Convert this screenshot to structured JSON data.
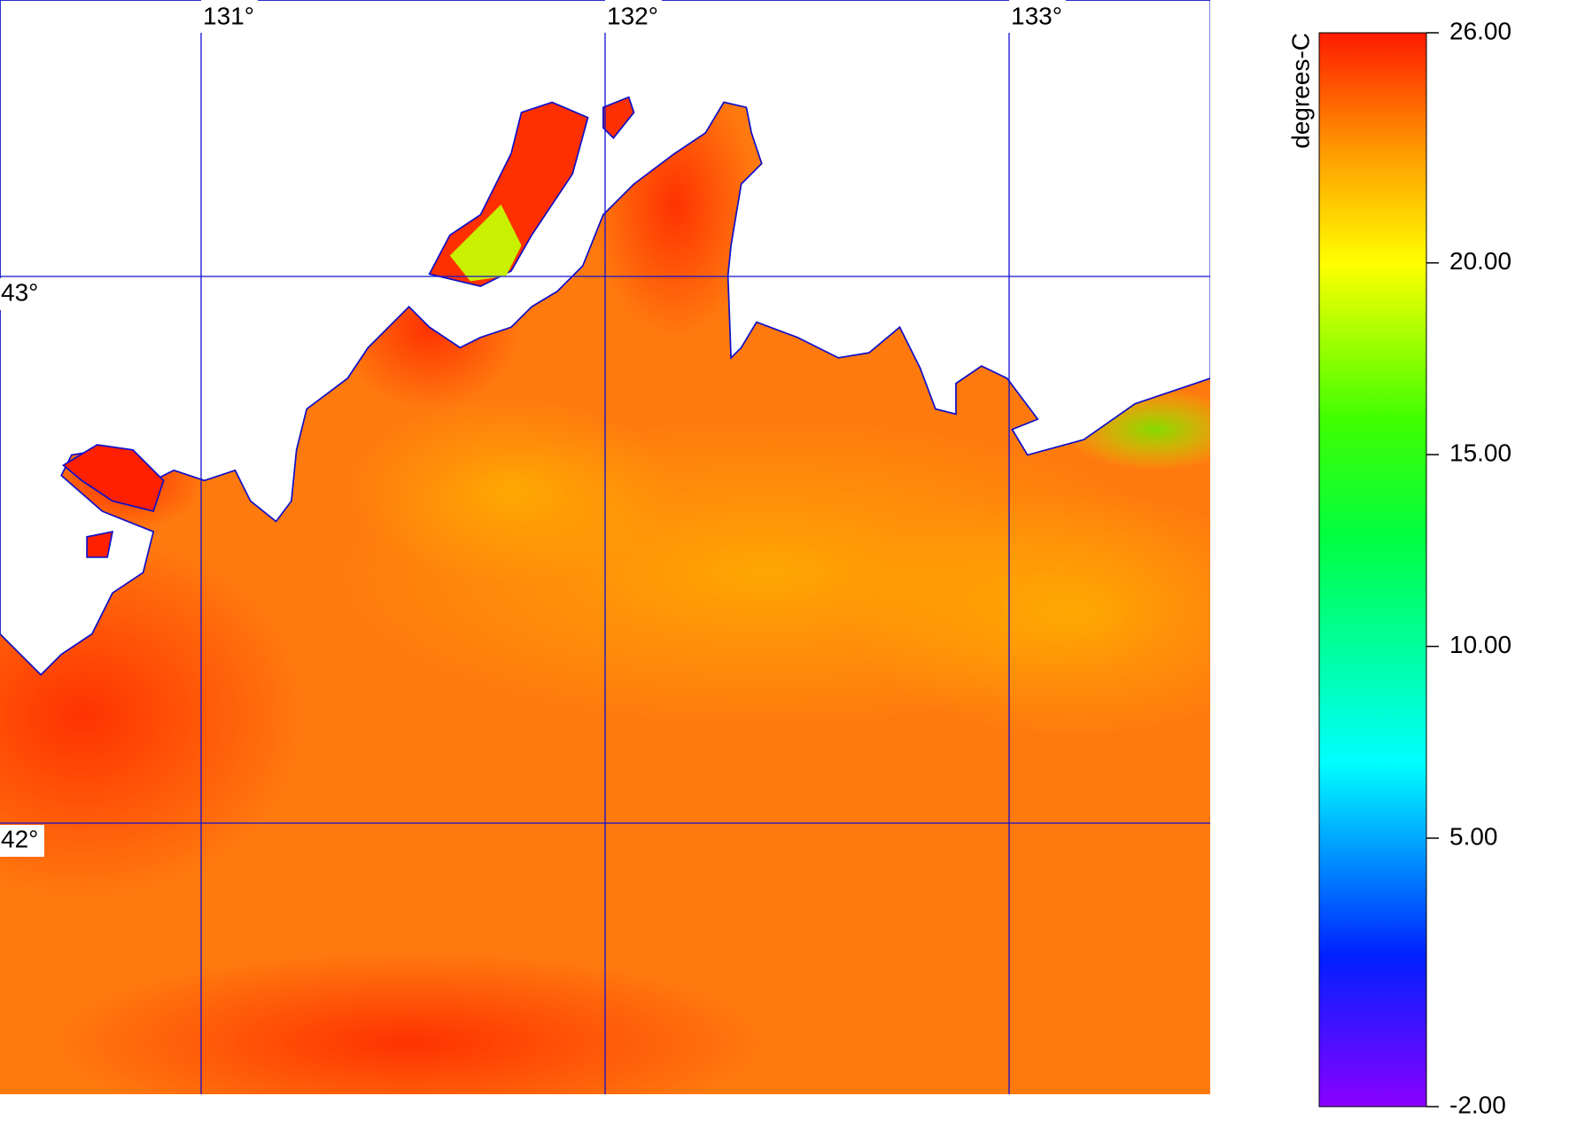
{
  "map": {
    "lon_ticks": [
      {
        "value": 131,
        "label": "131°"
      },
      {
        "value": 132,
        "label": "132°"
      },
      {
        "value": 133,
        "label": "133°"
      }
    ],
    "lat_ticks": [
      {
        "value": 43,
        "label": "43°"
      },
      {
        "value": 42,
        "label": "42°"
      }
    ],
    "colorbar": {
      "label": "degrees-C",
      "lim": [
        -2,
        26
      ],
      "ticks": [
        {
          "value": 26,
          "label": "26.00"
        },
        {
          "value": 20,
          "label": "20.00"
        },
        {
          "value": 15,
          "label": "15.00"
        },
        {
          "value": 10,
          "label": "10.00"
        },
        {
          "value": 5,
          "label": "5.00"
        },
        {
          "value": -2,
          "label": "-2.00"
        }
      ]
    }
  }
}
